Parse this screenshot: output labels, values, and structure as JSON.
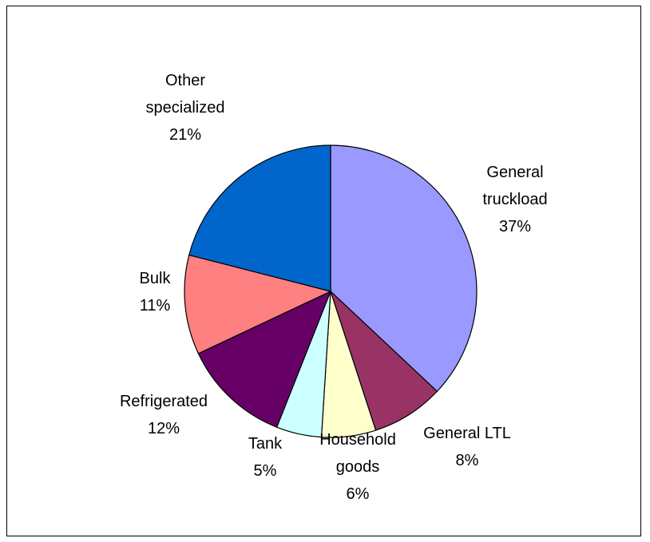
{
  "chart_data": {
    "type": "pie",
    "title": "",
    "legend": "none",
    "slices": [
      {
        "name": "General truckload",
        "label_lines": [
          "General",
          "truckload"
        ],
        "value": 37,
        "value_label": "37%",
        "color": "#9999ff"
      },
      {
        "name": "General LTL",
        "label_lines": [
          "General LTL"
        ],
        "value": 8,
        "value_label": "8%",
        "color": "#993366"
      },
      {
        "name": "Household goods",
        "label_lines": [
          "Household",
          "goods"
        ],
        "value": 6,
        "value_label": "6%",
        "color": "#ffffcc"
      },
      {
        "name": "Tank",
        "label_lines": [
          "Tank"
        ],
        "value": 5,
        "value_label": "5%",
        "color": "#ccffff"
      },
      {
        "name": "Refrigerated",
        "label_lines": [
          "Refrigerated"
        ],
        "value": 12,
        "value_label": "12%",
        "color": "#660066"
      },
      {
        "name": "Bulk",
        "label_lines": [
          "Bulk"
        ],
        "value": 11,
        "value_label": "11%",
        "color": "#ff8080"
      },
      {
        "name": "Other specialized",
        "label_lines": [
          "Other",
          "specialized"
        ],
        "value": 21,
        "value_label": "21%",
        "color": "#0066cc"
      }
    ]
  }
}
